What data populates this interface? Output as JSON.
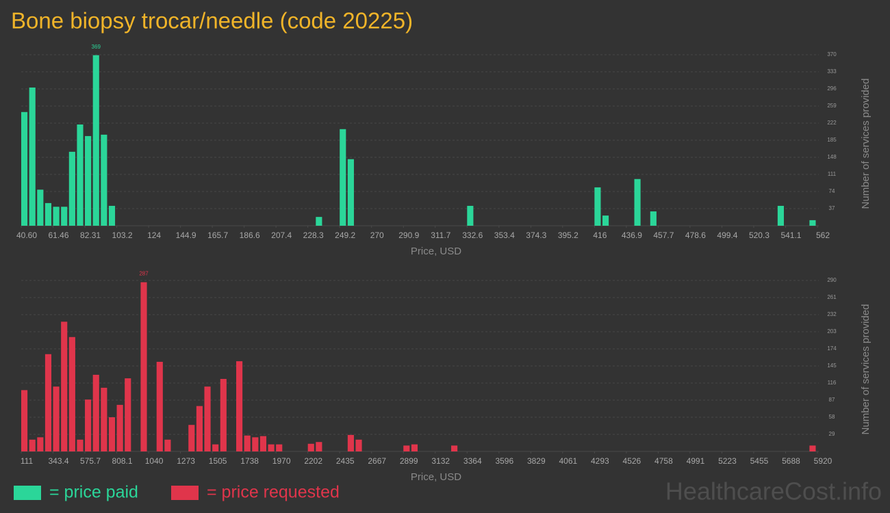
{
  "title": "Bone biopsy trocar/needle (code 20225)",
  "watermark": "HealthcareCost.info",
  "chart_data": [
    {
      "type": "histogram",
      "name": "= price paid",
      "color": "#2bd699",
      "xlabel": "Price, USD",
      "ylabel": "Number of services provided",
      "bins": [
        40.6,
        45.814,
        51.028,
        56.242,
        61.456,
        66.67,
        71.884,
        77.098,
        82.312,
        87.526,
        92.74,
        97.954,
        103.168,
        108.382,
        113.596,
        118.81,
        124.024,
        129.238,
        134.452,
        139.666,
        144.88,
        150.094,
        155.308,
        160.522,
        165.736,
        170.95,
        176.164,
        181.378,
        186.592,
        191.806,
        197.02,
        202.234,
        207.448,
        212.662,
        217.876,
        223.09,
        228.304,
        233.518,
        238.732,
        243.946,
        249.16,
        254.374,
        259.588,
        264.802,
        270.016,
        275.23,
        280.444,
        285.658,
        290.872,
        296.086,
        301.3,
        306.514,
        311.728,
        316.942,
        322.156,
        327.37,
        332.584,
        337.798,
        343.012,
        348.226,
        353.44,
        358.654,
        363.868,
        369.082,
        374.296,
        379.51,
        384.724,
        389.938,
        395.152,
        400.366,
        405.58,
        410.794,
        416.008,
        421.222,
        426.436,
        431.65,
        436.864,
        442.078,
        447.292,
        452.506,
        457.72,
        462.934,
        468.148,
        473.362,
        478.576,
        483.79,
        489.004,
        494.218,
        499.432,
        504.646,
        509.86,
        515.074,
        520.288,
        525.502,
        530.716,
        535.93,
        541.144,
        546.358,
        551.572,
        556.786,
        562
      ],
      "values": [
        246,
        299,
        78,
        49,
        41,
        41,
        160,
        219,
        194,
        369,
        197,
        43,
        0,
        0,
        0,
        0,
        0,
        0,
        0,
        0,
        0,
        0,
        0,
        0,
        0,
        0,
        0,
        0,
        0,
        0,
        0,
        0,
        0,
        0,
        0,
        0,
        0,
        19,
        0,
        0,
        209,
        144,
        0,
        0,
        0,
        0,
        0,
        0,
        0,
        0,
        0,
        0,
        0,
        0,
        0,
        0,
        43,
        0,
        0,
        0,
        0,
        0,
        0,
        0,
        0,
        0,
        0,
        0,
        0,
        0,
        0,
        0,
        83,
        22,
        0,
        0,
        0,
        101,
        0,
        31,
        0,
        0,
        0,
        0,
        0,
        0,
        0,
        0,
        0,
        0,
        0,
        0,
        0,
        0,
        0,
        43,
        0,
        0,
        0,
        12
      ],
      "xlim": [
        40.6,
        562
      ],
      "xticks": [
        {
          "value": 40.6,
          "label": "40.60"
        },
        {
          "value": 61.456,
          "label": "61.46"
        },
        {
          "value": 82.312,
          "label": "82.31"
        },
        {
          "value": 103.168,
          "label": "103.2"
        },
        {
          "value": 124.024,
          "label": "124"
        },
        {
          "value": 144.88,
          "label": "144.9"
        },
        {
          "value": 165.736,
          "label": "165.7"
        },
        {
          "value": 186.592,
          "label": "186.6"
        },
        {
          "value": 207.448,
          "label": "207.4"
        },
        {
          "value": 228.304,
          "label": "228.3"
        },
        {
          "value": 249.16,
          "label": "249.2"
        },
        {
          "value": 270.016,
          "label": "270"
        },
        {
          "value": 290.872,
          "label": "290.9"
        },
        {
          "value": 311.728,
          "label": "311.7"
        },
        {
          "value": 332.584,
          "label": "332.6"
        },
        {
          "value": 353.44,
          "label": "353.4"
        },
        {
          "value": 374.296,
          "label": "374.3"
        },
        {
          "value": 395.152,
          "label": "395.2"
        },
        {
          "value": 416.008,
          "label": "416"
        },
        {
          "value": 436.864,
          "label": "436.9"
        },
        {
          "value": 457.72,
          "label": "457.7"
        },
        {
          "value": 478.576,
          "label": "478.6"
        },
        {
          "value": 499.432,
          "label": "499.4"
        },
        {
          "value": 520.288,
          "label": "520.3"
        },
        {
          "value": 541.144,
          "label": "541.1"
        },
        562
      ],
      "ylim": [
        0,
        370
      ],
      "yticks": [
        37,
        74,
        111,
        148,
        185,
        222,
        259,
        296,
        333,
        370
      ],
      "grid": true
    },
    {
      "type": "histogram",
      "name": "= price requested",
      "color": "#e0354b",
      "xlabel": "Price, USD",
      "ylabel": "Number of services provided",
      "bins": [
        111,
        169.09,
        227.18,
        285.27,
        343.36,
        401.45,
        459.54,
        517.63,
        575.72,
        633.81,
        691.9,
        749.99,
        808.08,
        866.17,
        924.26,
        982.35,
        1040.44,
        1098.53,
        1156.62,
        1214.71,
        1272.8,
        1330.89,
        1388.98,
        1447.07,
        1505.16,
        1563.25,
        1621.34,
        1679.43,
        1737.52,
        1795.61,
        1853.7,
        1911.79,
        1969.88,
        2027.97,
        2086.06,
        2144.15,
        2202.24,
        2260.33,
        2318.42,
        2376.51,
        2434.6,
        2492.69,
        2550.78,
        2608.87,
        2666.96,
        2725.05,
        2783.14,
        2841.23,
        2899.32,
        2957.41,
        3015.5,
        3073.59,
        3131.68,
        3189.77,
        3247.86,
        3305.95,
        3364.04,
        3422.13,
        3480.22,
        3538.31,
        3596.4,
        3654.49,
        3712.58,
        3770.67,
        3828.76,
        3886.85,
        3944.94,
        4003.03,
        4061.12,
        4119.21,
        4177.3,
        4235.39,
        4293.48,
        4351.57,
        4409.66,
        4467.75,
        4525.84,
        4583.93,
        4642.02,
        4700.11,
        4758.2,
        4816.29,
        4874.38,
        4932.47,
        4990.56,
        5048.65,
        5106.74,
        5164.83,
        5222.92,
        5281.01,
        5339.1,
        5397.19,
        5455.28,
        5513.37,
        5571.46,
        5629.55,
        5687.64,
        5745.73,
        5803.82,
        5861.91,
        5920
      ],
      "values": [
        104,
        20,
        24,
        165,
        110,
        220,
        194,
        20,
        88,
        130,
        108,
        58,
        79,
        124,
        0,
        287,
        0,
        152,
        20,
        0,
        0,
        45,
        77,
        110,
        12,
        123,
        0,
        153,
        27,
        24,
        26,
        12,
        12,
        0,
        0,
        0,
        13,
        16,
        0,
        0,
        0,
        28,
        20,
        0,
        0,
        0,
        0,
        0,
        10,
        12,
        0,
        0,
        0,
        0,
        10,
        0,
        0,
        0,
        0,
        0,
        0,
        0,
        0,
        0,
        0,
        0,
        0,
        0,
        0,
        0,
        0,
        0,
        0,
        0,
        0,
        0,
        0,
        0,
        0,
        0,
        0,
        0,
        0,
        0,
        0,
        0,
        0,
        0,
        0,
        0,
        0,
        0,
        0,
        0,
        0,
        0,
        0,
        0,
        0,
        10
      ],
      "xlim": [
        111,
        5920
      ],
      "xticks": [
        111,
        {
          "value": 343.36,
          "label": "343.4"
        },
        {
          "value": 575.72,
          "label": "575.7"
        },
        {
          "value": 808.08,
          "label": "808.1"
        },
        {
          "value": 1040.44,
          "label": "1040"
        },
        {
          "value": 1272.8,
          "label": "1273"
        },
        {
          "value": 1505.16,
          "label": "1505"
        },
        {
          "value": 1737.52,
          "label": "1738"
        },
        {
          "value": 1969.88,
          "label": "1970"
        },
        {
          "value": 2202.24,
          "label": "2202"
        },
        {
          "value": 2434.6,
          "label": "2435"
        },
        {
          "value": 2666.96,
          "label": "2667"
        },
        {
          "value": 2899.32,
          "label": "2899"
        },
        {
          "value": 3131.68,
          "label": "3132"
        },
        {
          "value": 3364.04,
          "label": "3364"
        },
        {
          "value": 3596.4,
          "label": "3596"
        },
        {
          "value": 3828.76,
          "label": "3829"
        },
        {
          "value": 4061.12,
          "label": "4061"
        },
        {
          "value": 4293.48,
          "label": "4293"
        },
        {
          "value": 4525.84,
          "label": "4526"
        },
        {
          "value": 4758.2,
          "label": "4758"
        },
        {
          "value": 4990.56,
          "label": "4991"
        },
        {
          "value": 5222.92,
          "label": "5223"
        },
        {
          "value": 5455.28,
          "label": "5455"
        },
        {
          "value": 5687.64,
          "label": "5688"
        },
        5920
      ],
      "ylim": [
        0,
        290
      ],
      "yticks": [
        29,
        58,
        87,
        116,
        145,
        174,
        203,
        232,
        261,
        290
      ],
      "grid": true
    }
  ]
}
